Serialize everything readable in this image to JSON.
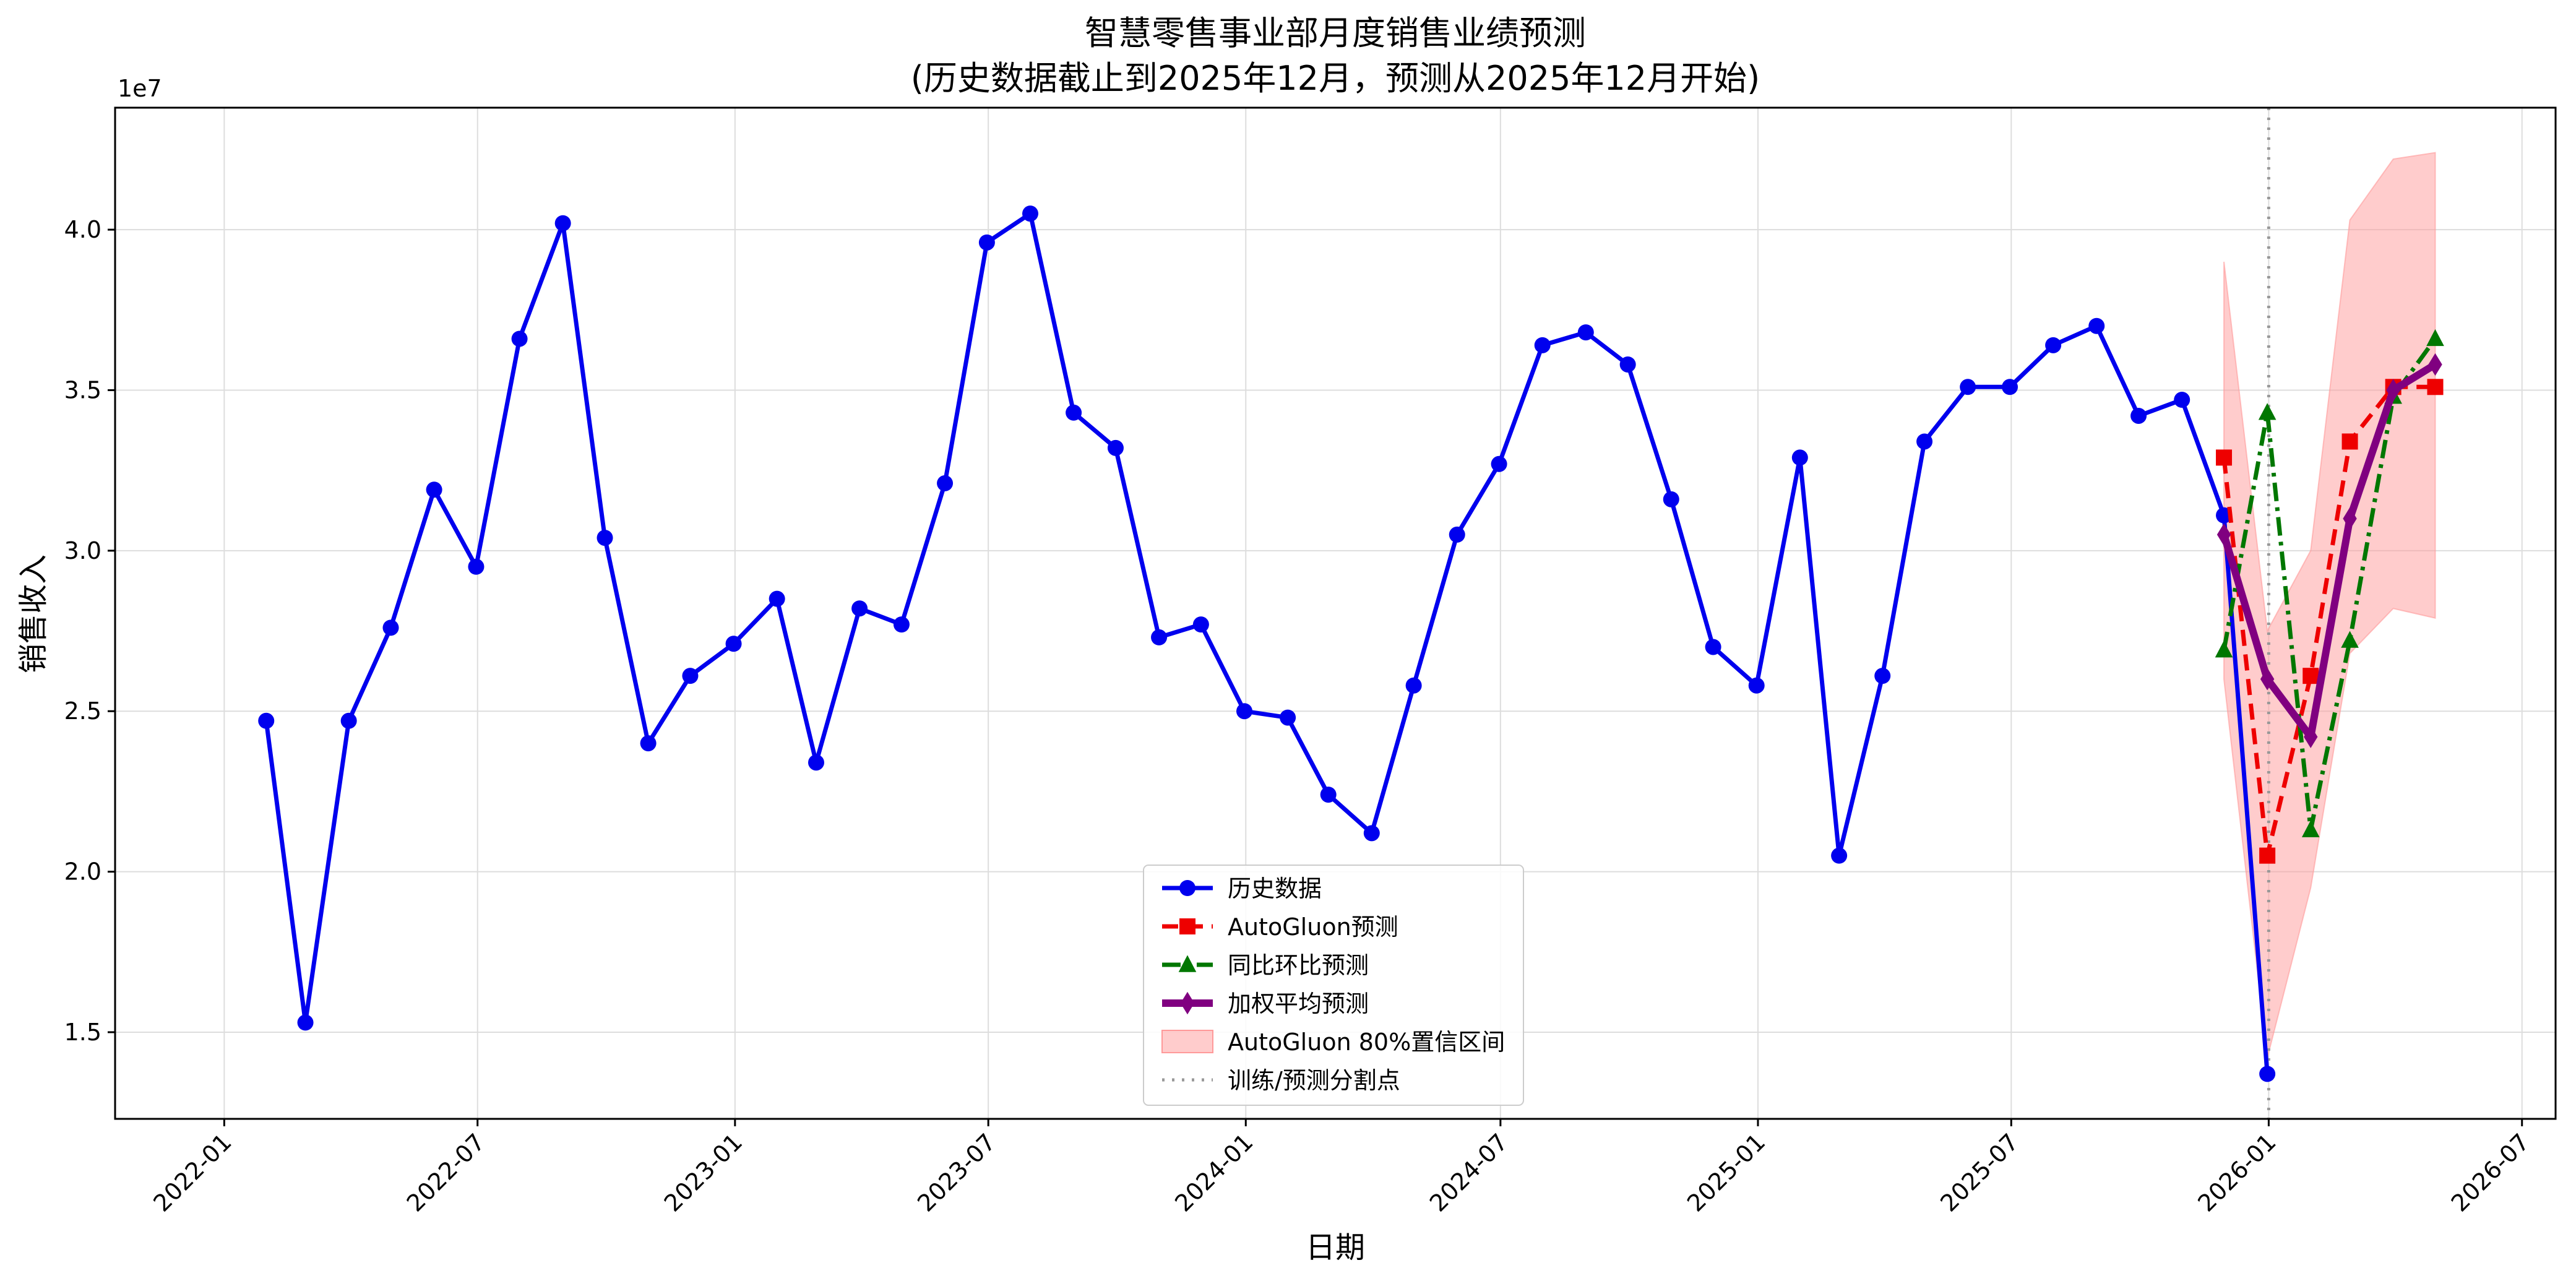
{
  "chart_data": {
    "type": "line",
    "title_line1": "智慧零售事业部月度销售业绩预测",
    "title_line2": "(历史数据截止到2025年12月，预测从2025年12月开始)",
    "xlabel": "日期",
    "ylabel": "销售收入",
    "y_multiplier_label": "1e7",
    "x_domain": [
      "2021-10-15",
      "2026-07-25"
    ],
    "ylim": [
      12300000,
      43800000
    ],
    "x_ticks": [
      "2022-01",
      "2022-07",
      "2023-01",
      "2023-07",
      "2024-01",
      "2024-07",
      "2025-01",
      "2025-07",
      "2026-01",
      "2026-07"
    ],
    "y_ticks": [
      {
        "value": 15000000,
        "label": "1.5"
      },
      {
        "value": 20000000,
        "label": "2.0"
      },
      {
        "value": 25000000,
        "label": "2.5"
      },
      {
        "value": 30000000,
        "label": "3.0"
      },
      {
        "value": 35000000,
        "label": "3.5"
      },
      {
        "value": 40000000,
        "label": "4.0"
      }
    ],
    "grid": true,
    "legend_position": "lower center",
    "split_date": "2026-01-01",
    "confidence_band": {
      "name": "AutoGluon 80%置信区间",
      "color": "#ff9999",
      "x": [
        "2025-11-30",
        "2025-12-31",
        "2026-01-31",
        "2026-02-28",
        "2026-03-31",
        "2026-04-30"
      ],
      "lower": [
        26000000,
        14200000,
        19500000,
        26800000,
        28200000,
        27900000
      ],
      "upper": [
        39000000,
        27500000,
        30000000,
        40300000,
        42200000,
        42400000
      ]
    },
    "series": [
      {
        "name": "历史数据",
        "color": "#0000ee",
        "dash": "",
        "marker": "circle",
        "width": 7,
        "x": [
          "2022-01-31",
          "2022-02-28",
          "2022-03-31",
          "2022-04-30",
          "2022-05-31",
          "2022-06-30",
          "2022-07-31",
          "2022-08-31",
          "2022-09-30",
          "2022-10-31",
          "2022-11-30",
          "2022-12-31",
          "2023-01-31",
          "2023-02-28",
          "2023-03-31",
          "2023-04-30",
          "2023-05-31",
          "2023-06-30",
          "2023-07-31",
          "2023-08-31",
          "2023-09-30",
          "2023-10-31",
          "2023-11-30",
          "2023-12-31",
          "2024-01-31",
          "2024-02-29",
          "2024-03-31",
          "2024-04-30",
          "2024-05-31",
          "2024-06-30",
          "2024-07-31",
          "2024-08-31",
          "2024-09-30",
          "2024-10-31",
          "2024-11-30",
          "2024-12-31",
          "2025-01-31",
          "2025-02-28",
          "2025-03-31",
          "2025-04-30",
          "2025-05-31",
          "2025-06-30",
          "2025-07-31",
          "2025-08-31",
          "2025-09-30",
          "2025-10-31",
          "2025-11-30",
          "2025-12-31"
        ],
        "values": [
          24700000,
          15300000,
          24700000,
          27600000,
          31900000,
          29500000,
          36600000,
          40200000,
          30400000,
          24000000,
          26100000,
          27100000,
          28500000,
          23400000,
          28200000,
          27700000,
          32100000,
          39600000,
          40500000,
          34300000,
          33200000,
          27300000,
          27700000,
          25000000,
          24800000,
          22400000,
          21200000,
          25800000,
          30500000,
          32700000,
          36400000,
          36800000,
          35800000,
          31600000,
          27000000,
          25800000,
          32900000,
          20500000,
          26100000,
          33400000,
          35100000,
          35100000,
          36400000,
          37000000,
          34200000,
          34700000,
          31100000,
          13700000
        ]
      },
      {
        "name": "AutoGluon预测",
        "color": "#ee0000",
        "dash": "26,14",
        "marker": "square",
        "width": 7,
        "x": [
          "2025-11-30",
          "2025-12-31",
          "2026-01-31",
          "2026-02-28",
          "2026-03-31",
          "2026-04-30"
        ],
        "values": [
          32900000,
          20500000,
          26100000,
          33400000,
          35100000,
          35100000
        ]
      },
      {
        "name": "同比环比预测",
        "color": "#007700",
        "dash": "30,10,6,10",
        "marker": "triangle",
        "width": 7,
        "x": [
          "2025-11-30",
          "2025-12-31",
          "2026-01-31",
          "2026-02-28",
          "2026-03-31",
          "2026-04-30"
        ],
        "values": [
          26900000,
          34300000,
          21300000,
          27200000,
          34800000,
          36600000
        ]
      },
      {
        "name": "加权平均预测",
        "color": "#800080",
        "dash": "",
        "marker": "diamond",
        "width": 12,
        "x": [
          "2025-11-30",
          "2025-12-31",
          "2026-01-31",
          "2026-02-28",
          "2026-03-31",
          "2026-04-30"
        ],
        "values": [
          30500000,
          26000000,
          24200000,
          31000000,
          35000000,
          35800000
        ]
      }
    ],
    "legend": [
      {
        "label": "历史数据",
        "kind": "line",
        "color": "#0000ee",
        "dash": "",
        "marker": "circle",
        "width": 7
      },
      {
        "label": "AutoGluon预测",
        "kind": "line",
        "color": "#ee0000",
        "dash": "26,14",
        "marker": "square",
        "width": 7
      },
      {
        "label": "同比环比预测",
        "kind": "line",
        "color": "#007700",
        "dash": "30,10,6,10",
        "marker": "triangle",
        "width": 7
      },
      {
        "label": "加权平均预测",
        "kind": "line",
        "color": "#800080",
        "dash": "",
        "marker": "diamond",
        "width": 12
      },
      {
        "label": "AutoGluon 80%置信区间",
        "kind": "patch",
        "color": "#ff9999"
      },
      {
        "label": "训练/预测分割点",
        "kind": "line",
        "color": "#999999",
        "dash": "4,12",
        "marker": "",
        "width": 5
      }
    ]
  }
}
